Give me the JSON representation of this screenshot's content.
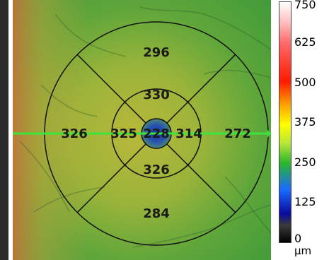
{
  "chart_data": {
    "type": "heatmap",
    "title": "",
    "grid_type": "ETDRS thickness map",
    "sectors": {
      "center": 228,
      "inner_superior": 330,
      "inner_nasal": 314,
      "inner_inferior": 326,
      "inner_temporal": 325,
      "outer_superior": 296,
      "outer_nasal": 272,
      "outer_inferior": 284,
      "outer_temporal": 326
    },
    "colorbar": {
      "min": 0,
      "max": 750,
      "tick_labels": [
        "750",
        "625",
        "500",
        "375",
        "250",
        "125",
        "0"
      ],
      "unit": "µm"
    },
    "colors": {
      "scan_line": "#39e639",
      "grid_line": "#111111",
      "center_fill": "#1f3fa8"
    }
  }
}
